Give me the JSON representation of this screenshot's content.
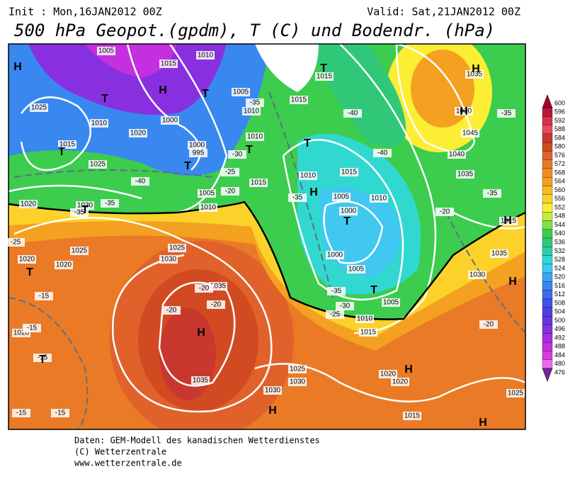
{
  "header": {
    "init": "Init : Mon,16JAN2012 00Z",
    "valid": "Valid: Sat,21JAN2012 00Z",
    "title": "500 hPa Geopot.(gpdm), T (C) und Bodendr. (hPa)"
  },
  "map_labels": [
    "1005",
    "1010",
    "1015",
    "1025",
    "1010",
    "1020",
    "1015",
    "1025",
    "1000",
    "1000",
    "995",
    "1005",
    "1010",
    "1005",
    "1010",
    "1010",
    "1015",
    "1015",
    "1015",
    "1010",
    "1015",
    "1005",
    "1000",
    "1010",
    "1000",
    "1005",
    "1005",
    "1010",
    "1015",
    "1020",
    "1020",
    "1025",
    "1030",
    "1030",
    "1015",
    "1020",
    "1020",
    "1020",
    "1025",
    "1025",
    "1030",
    "1035",
    "1035",
    "1020",
    "1035",
    "1030",
    "1045",
    "1040",
    "1035",
    "1035",
    "1030",
    "1025",
    "1015",
    "1030",
    "-40",
    "-40",
    "-35",
    "-35",
    "-35",
    "-35",
    "-35",
    "-40",
    "-25",
    "-20",
    "-30",
    "-35",
    "-20",
    "-25",
    "-20",
    "-20",
    "-20",
    "-15",
    "-15",
    "-15",
    "-15",
    "-15",
    "-20",
    "-35",
    "-30",
    "-25",
    "H",
    "H",
    "H",
    "H",
    "H",
    "H",
    "H",
    "H",
    "H",
    "H",
    "H",
    "T",
    "T",
    "T",
    "T",
    "T",
    "T",
    "T",
    "T",
    "T",
    "T",
    "T",
    "T"
  ],
  "colorbar": {
    "ticks": [
      600,
      596,
      592,
      588,
      584,
      580,
      576,
      572,
      568,
      564,
      560,
      556,
      552,
      548,
      544,
      540,
      536,
      532,
      528,
      524,
      520,
      516,
      512,
      508,
      504,
      500,
      496,
      492,
      488,
      484,
      480,
      476
    ],
    "colors": [
      "#a50026",
      "#c0143c",
      "#d7304a",
      "#e8485a",
      "#c8382e",
      "#d24a22",
      "#e0622a",
      "#ea7a26",
      "#f08c1e",
      "#f4a020",
      "#f8bb24",
      "#fcd22a",
      "#fcee34",
      "#c6ea3a",
      "#7ee04a",
      "#3ccc4e",
      "#30c878",
      "#2cd0a8",
      "#30d8d0",
      "#40c8f0",
      "#38a8f0",
      "#3888f0",
      "#3c6cf0",
      "#4050e8",
      "#5040e0",
      "#6a34e0",
      "#8830e0",
      "#a82ce0",
      "#c430e0",
      "#d83ce0",
      "#e86cf0",
      "#8020a0"
    ]
  },
  "footer": [
    "Daten: GEM-Modell des kanadischen Wetterdienstes",
    "(C) Wetterzentrale",
    "www.wetterzentrale.de"
  ]
}
